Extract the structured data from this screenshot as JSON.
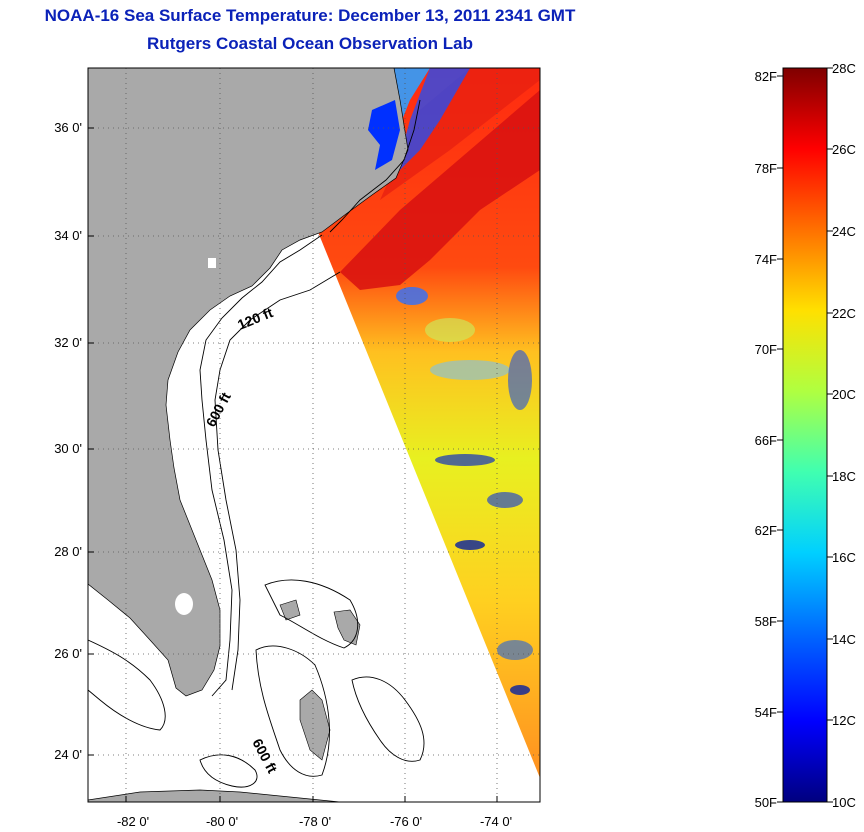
{
  "header": {
    "title": "NOAA-16 Sea Surface Temperature:  December 13, 2011 2341 GMT",
    "subtitle": "Rutgers Coastal Ocean Observation Lab"
  },
  "map": {
    "lon_ticks": [
      "-82 0'",
      "-80 0'",
      "-78 0'",
      "-76 0'",
      "-74 0'"
    ],
    "lat_ticks": [
      "36 0'",
      "34 0'",
      "32 0'",
      "30 0'",
      "28 0'",
      "26 0'",
      "24 0'"
    ],
    "contour_labels": [
      "120 ft",
      "600 ft",
      "600 ft"
    ],
    "colors": {
      "land": "#a9a9a9",
      "ocean_blank": "#ffffff",
      "frame": "#000000",
      "grid": "#555555"
    }
  },
  "colorbar": {
    "fahrenheit_labels": [
      "82F",
      "78F",
      "74F",
      "70F",
      "66F",
      "62F",
      "58F",
      "54F",
      "50F"
    ],
    "celsius_labels": [
      "28C",
      "26C",
      "24C",
      "22C",
      "20C",
      "18C",
      "16C",
      "14C",
      "12C",
      "10C"
    ],
    "range_c": [
      10,
      28
    ]
  }
}
